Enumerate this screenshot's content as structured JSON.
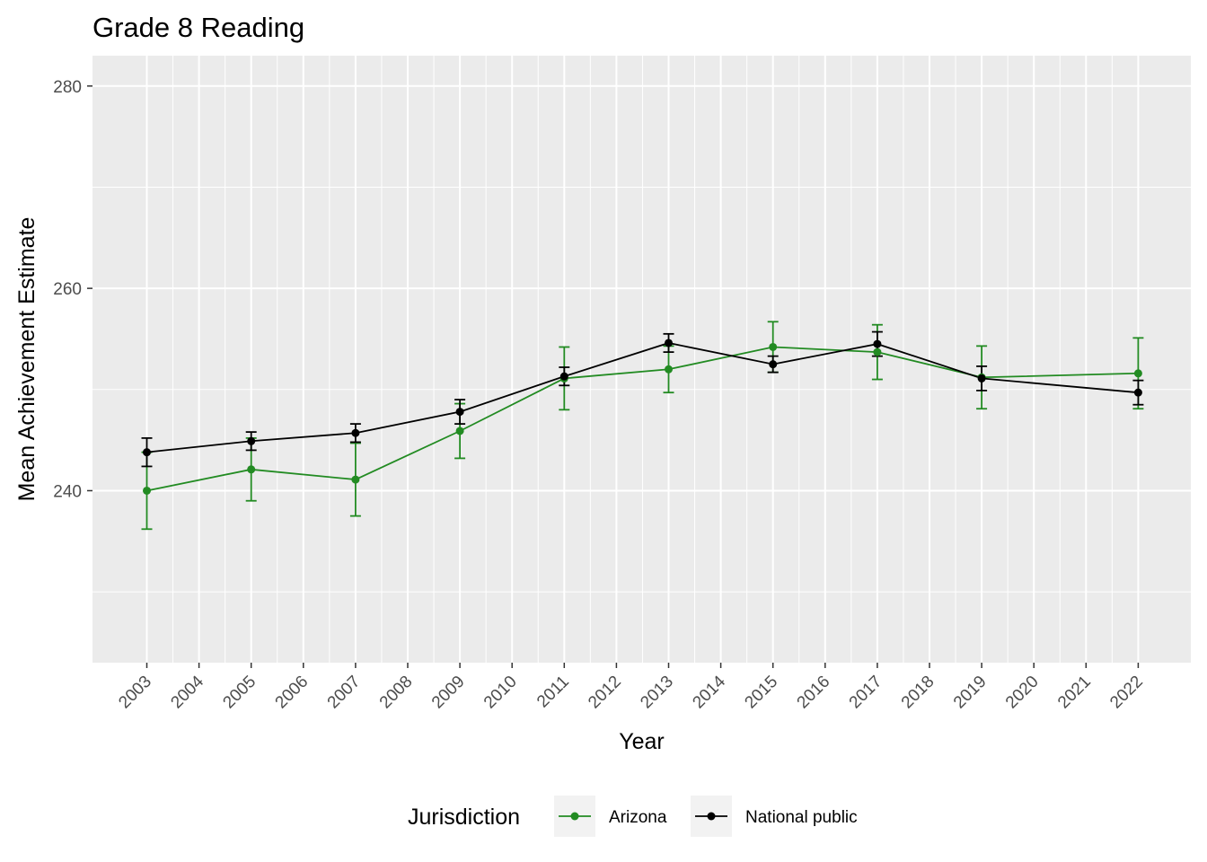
{
  "chart_data": {
    "type": "line",
    "title": "Grade 8 Reading",
    "xlabel": "Year",
    "ylabel": "Mean Achievement Estimate",
    "x_categories": [
      "2003",
      "2004",
      "2005",
      "2006",
      "2007",
      "2008",
      "2009",
      "2010",
      "2011",
      "2012",
      "2013",
      "2014",
      "2015",
      "2016",
      "2017",
      "2018",
      "2019",
      "2020",
      "2021",
      "2022"
    ],
    "ylim": [
      223,
      283
    ],
    "y_ticks": [
      240,
      260,
      280
    ],
    "grid": true,
    "legend": {
      "title": "Jurisdiction",
      "position": "bottom"
    },
    "series": [
      {
        "name": "Arizona",
        "color": "#228B22",
        "points": [
          {
            "x": "2003",
            "y": 240.0,
            "lo": 236.2,
            "hi": 243.8
          },
          {
            "x": "2005",
            "y": 242.1,
            "lo": 239.0,
            "hi": 245.2
          },
          {
            "x": "2007",
            "y": 241.1,
            "lo": 237.5,
            "hi": 244.7
          },
          {
            "x": "2009",
            "y": 245.9,
            "lo": 243.2,
            "hi": 248.6
          },
          {
            "x": "2011",
            "y": 251.1,
            "lo": 248.0,
            "hi": 254.2
          },
          {
            "x": "2013",
            "y": 252.0,
            "lo": 249.7,
            "hi": 254.3
          },
          {
            "x": "2015",
            "y": 254.2,
            "lo": 251.7,
            "hi": 256.7
          },
          {
            "x": "2017",
            "y": 253.7,
            "lo": 251.0,
            "hi": 256.4
          },
          {
            "x": "2019",
            "y": 251.2,
            "lo": 248.1,
            "hi": 254.3
          },
          {
            "x": "2022",
            "y": 251.6,
            "lo": 248.1,
            "hi": 255.1
          }
        ]
      },
      {
        "name": "National public",
        "color": "#000000",
        "points": [
          {
            "x": "2003",
            "y": 243.8,
            "lo": 242.4,
            "hi": 245.2
          },
          {
            "x": "2005",
            "y": 244.9,
            "lo": 244.0,
            "hi": 245.8
          },
          {
            "x": "2007",
            "y": 245.7,
            "lo": 244.8,
            "hi": 246.6
          },
          {
            "x": "2009",
            "y": 247.8,
            "lo": 246.6,
            "hi": 249.0
          },
          {
            "x": "2011",
            "y": 251.3,
            "lo": 250.4,
            "hi": 252.2
          },
          {
            "x": "2013",
            "y": 254.6,
            "lo": 253.7,
            "hi": 255.5
          },
          {
            "x": "2015",
            "y": 252.5,
            "lo": 251.7,
            "hi": 253.3
          },
          {
            "x": "2017",
            "y": 254.5,
            "lo": 253.3,
            "hi": 255.7
          },
          {
            "x": "2019",
            "y": 251.1,
            "lo": 249.9,
            "hi": 252.3
          },
          {
            "x": "2022",
            "y": 249.7,
            "lo": 248.5,
            "hi": 250.9
          }
        ]
      }
    ]
  }
}
